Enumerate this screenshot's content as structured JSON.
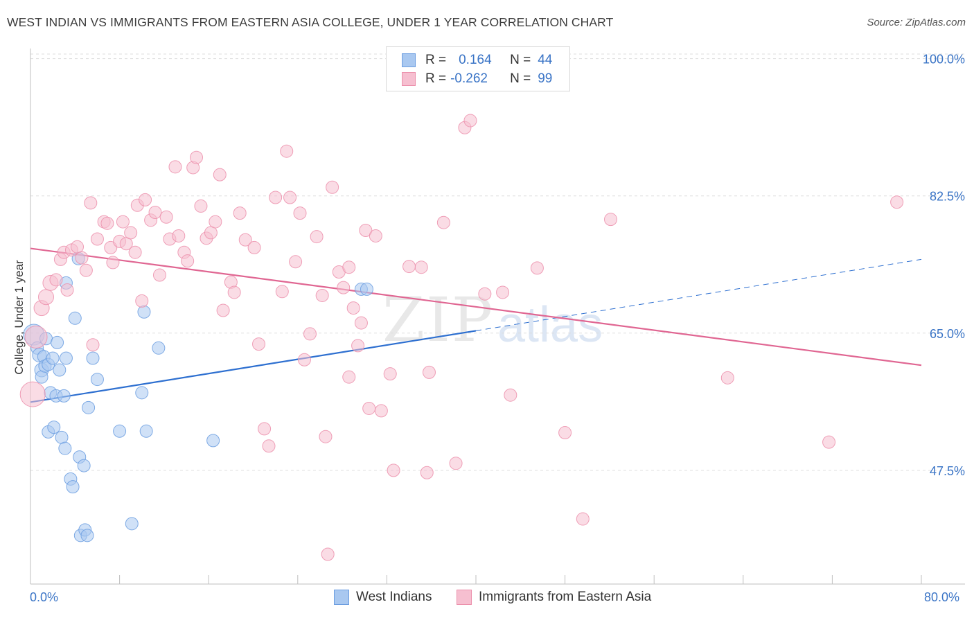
{
  "title": "WEST INDIAN VS IMMIGRANTS FROM EASTERN ASIA COLLEGE, UNDER 1 YEAR CORRELATION CHART",
  "source": "Source: ZipAtlas.com",
  "watermark": {
    "zip": "ZIP",
    "atlas": "atlas"
  },
  "legend": {
    "rows": [
      {
        "r_label": "R =",
        "r_value": "0.164",
        "n_label": "N =",
        "n_value": "44",
        "color": "#a9c8f0",
        "border": "#6b9de0"
      },
      {
        "r_label": "R =",
        "r_value": "-0.262",
        "n_label": "N =",
        "n_value": "99",
        "color": "#f6bfd0",
        "border": "#ec8fab"
      }
    ]
  },
  "bottom_legend": [
    {
      "label": "West Indians",
      "color": "#a9c8f0",
      "border": "#6b9de0"
    },
    {
      "label": "Immigrants from Eastern Asia",
      "color": "#f6bfd0",
      "border": "#ec8fab"
    }
  ],
  "x_axis": {
    "min_label": "0.0%",
    "max_label": "80.0%"
  },
  "chart_data": {
    "type": "scatter",
    "title": "WEST INDIAN VS IMMIGRANTS FROM EASTERN ASIA COLLEGE, UNDER 1 YEAR CORRELATION CHART",
    "xlabel": "",
    "ylabel": "College, Under 1 year",
    "xlim": [
      0,
      80
    ],
    "ylim": [
      33,
      102
    ],
    "y_ticks": [
      {
        "value": 100.0,
        "label": "100.0%"
      },
      {
        "value": 82.5,
        "label": "82.5%"
      },
      {
        "value": 65.0,
        "label": "65.0%"
      },
      {
        "value": 47.5,
        "label": "47.5%"
      }
    ],
    "x_tick_count": 11,
    "grid": true,
    "series": [
      {
        "name": "West Indians",
        "color": "#6b9de0",
        "fill": "#a9c8f0",
        "trend": {
          "x0": 0,
          "y0": 56.2,
          "x1": 40,
          "y1": 65.3,
          "dash_to_x": 80,
          "dash_to_y": 74.4,
          "color": "#2d6fd0"
        },
        "points": [
          [
            0.3,
            64.8,
            15
          ],
          [
            0.6,
            63.1,
            9
          ],
          [
            0.8,
            62.2,
            10
          ],
          [
            1.0,
            60.3,
            10
          ],
          [
            1.0,
            59.4,
            9
          ],
          [
            1.2,
            62.0,
            9
          ],
          [
            1.3,
            60.8,
            9
          ],
          [
            1.4,
            64.3,
            9
          ],
          [
            1.6,
            61.0,
            9
          ],
          [
            1.6,
            52.4,
            9
          ],
          [
            1.8,
            57.4,
            9
          ],
          [
            2.0,
            61.8,
            9
          ],
          [
            2.1,
            53.0,
            9
          ],
          [
            2.3,
            57.0,
            9
          ],
          [
            2.4,
            63.8,
            9
          ],
          [
            2.6,
            60.3,
            9
          ],
          [
            2.8,
            51.7,
            9
          ],
          [
            3.0,
            57.0,
            9
          ],
          [
            3.1,
            50.3,
            9
          ],
          [
            3.2,
            71.4,
            9
          ],
          [
            3.2,
            61.8,
            9
          ],
          [
            3.6,
            46.4,
            9
          ],
          [
            3.8,
            45.4,
            9
          ],
          [
            4.0,
            66.9,
            9
          ],
          [
            4.3,
            74.5,
            9
          ],
          [
            4.4,
            49.2,
            9
          ],
          [
            4.5,
            39.2,
            9
          ],
          [
            4.8,
            48.1,
            9
          ],
          [
            4.9,
            39.9,
            9
          ],
          [
            5.1,
            39.2,
            9
          ],
          [
            5.2,
            55.5,
            9
          ],
          [
            5.6,
            61.8,
            9
          ],
          [
            6.0,
            59.1,
            9
          ],
          [
            8.0,
            52.5,
            9
          ],
          [
            9.1,
            40.7,
            9
          ],
          [
            10.0,
            57.4,
            9
          ],
          [
            10.2,
            67.7,
            9
          ],
          [
            10.4,
            52.5,
            9
          ],
          [
            11.5,
            63.1,
            9
          ],
          [
            16.4,
            51.3,
            9
          ],
          [
            29.7,
            70.6,
            9
          ],
          [
            30.2,
            70.6,
            9
          ]
        ]
      },
      {
        "name": "Immigrants from Eastern Asia",
        "color": "#ec8fab",
        "fill": "#f6bfd0",
        "trend": {
          "x0": 0,
          "y0": 75.8,
          "x1": 80,
          "y1": 60.9,
          "color": "#e06692"
        },
        "points": [
          [
            0.2,
            57.2,
            18
          ],
          [
            0.5,
            64.5,
            16
          ],
          [
            1.0,
            68.2,
            11
          ],
          [
            1.4,
            69.6,
            11
          ],
          [
            1.8,
            71.4,
            11
          ],
          [
            2.3,
            71.8,
            9
          ],
          [
            2.7,
            74.4,
            9
          ],
          [
            3.0,
            75.3,
            9
          ],
          [
            3.3,
            70.5,
            9
          ],
          [
            3.7,
            75.6,
            9
          ],
          [
            4.2,
            76.0,
            9
          ],
          [
            4.6,
            74.6,
            9
          ],
          [
            5.0,
            73.0,
            9
          ],
          [
            5.4,
            81.6,
            9
          ],
          [
            5.6,
            63.5,
            9
          ],
          [
            6.0,
            77.0,
            9
          ],
          [
            6.6,
            79.2,
            9
          ],
          [
            6.9,
            79.0,
            9
          ],
          [
            7.2,
            75.9,
            9
          ],
          [
            7.4,
            74.0,
            9
          ],
          [
            8.0,
            76.7,
            9
          ],
          [
            8.3,
            79.2,
            9
          ],
          [
            8.6,
            76.4,
            9
          ],
          [
            9.0,
            77.8,
            9
          ],
          [
            9.4,
            75.3,
            9
          ],
          [
            9.6,
            81.3,
            9
          ],
          [
            10.0,
            69.1,
            9
          ],
          [
            10.3,
            82.0,
            9
          ],
          [
            10.8,
            79.4,
            9
          ],
          [
            11.2,
            80.4,
            9
          ],
          [
            11.6,
            72.4,
            9
          ],
          [
            12.2,
            79.8,
            9
          ],
          [
            12.5,
            77.0,
            9
          ],
          [
            13.0,
            86.2,
            9
          ],
          [
            13.3,
            77.4,
            9
          ],
          [
            13.8,
            75.3,
            9
          ],
          [
            14.1,
            74.2,
            9
          ],
          [
            14.6,
            86.1,
            9
          ],
          [
            14.9,
            87.4,
            9
          ],
          [
            15.3,
            81.2,
            9
          ],
          [
            15.8,
            77.1,
            9
          ],
          [
            16.2,
            77.8,
            9
          ],
          [
            16.6,
            79.2,
            9
          ],
          [
            17.0,
            85.2,
            9
          ],
          [
            17.3,
            67.9,
            9
          ],
          [
            18.0,
            71.5,
            9
          ],
          [
            18.3,
            70.2,
            9
          ],
          [
            18.8,
            80.3,
            9
          ],
          [
            19.3,
            76.9,
            9
          ],
          [
            20.1,
            75.9,
            9
          ],
          [
            20.5,
            63.6,
            9
          ],
          [
            21.0,
            52.8,
            9
          ],
          [
            21.4,
            50.6,
            9
          ],
          [
            22.0,
            82.3,
            9
          ],
          [
            22.6,
            70.3,
            9
          ],
          [
            23.0,
            88.2,
            9
          ],
          [
            23.3,
            82.3,
            9
          ],
          [
            23.8,
            74.1,
            9
          ],
          [
            24.2,
            80.3,
            9
          ],
          [
            24.6,
            61.6,
            9
          ],
          [
            25.1,
            64.9,
            9
          ],
          [
            25.7,
            77.3,
            9
          ],
          [
            26.2,
            69.8,
            9
          ],
          [
            26.5,
            51.8,
            9
          ],
          [
            26.7,
            36.8,
            9
          ],
          [
            27.1,
            83.6,
            9
          ],
          [
            27.7,
            72.8,
            9
          ],
          [
            28.1,
            70.8,
            9
          ],
          [
            28.6,
            73.4,
            9
          ],
          [
            28.6,
            59.4,
            9
          ],
          [
            29.0,
            68.2,
            9
          ],
          [
            29.4,
            63.4,
            9
          ],
          [
            29.7,
            66.3,
            9
          ],
          [
            30.1,
            78.1,
            9
          ],
          [
            30.4,
            55.4,
            9
          ],
          [
            31.0,
            77.4,
            9
          ],
          [
            31.5,
            55.1,
            9
          ],
          [
            32.3,
            59.8,
            9
          ],
          [
            32.6,
            47.5,
            9
          ],
          [
            34.0,
            73.5,
            9
          ],
          [
            35.1,
            73.4,
            9
          ],
          [
            35.8,
            60.0,
            9
          ],
          [
            35.6,
            47.2,
            9
          ],
          [
            37.1,
            79.1,
            9
          ],
          [
            38.2,
            48.4,
            9
          ],
          [
            39.0,
            91.2,
            9
          ],
          [
            39.5,
            92.1,
            9
          ],
          [
            40.8,
            70.0,
            9
          ],
          [
            42.4,
            70.2,
            9
          ],
          [
            43.1,
            57.1,
            9
          ],
          [
            45.5,
            73.3,
            9
          ],
          [
            48.0,
            52.3,
            9
          ],
          [
            49.6,
            41.3,
            9
          ],
          [
            52.1,
            79.5,
            9
          ],
          [
            62.6,
            59.3,
            9
          ],
          [
            71.7,
            51.1,
            9
          ],
          [
            77.8,
            81.7,
            9
          ]
        ]
      }
    ]
  }
}
